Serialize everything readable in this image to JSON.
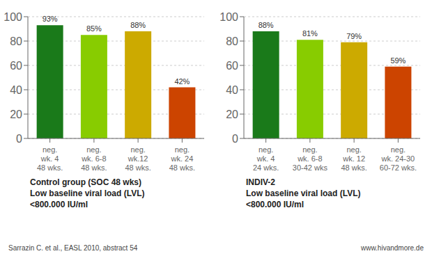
{
  "chart_data": [
    {
      "type": "bar",
      "title": "Control group (SOC 48 wks)\nLow baseline viral load (LVL)\n<800.000 IU/ml",
      "categories": [
        "neg.\nwk. 4\n48 wks.",
        "neg.\nwk. 6-8\n48 wks.",
        "neg.\nwk.12\n48 wks.",
        "neg.\nwk. 24\n48 wks."
      ],
      "values": [
        93,
        85,
        88,
        42
      ],
      "value_labels": [
        "93%",
        "85%",
        "88%",
        "42%"
      ],
      "data_labels": true,
      "colors": [
        "#1a7a1a",
        "#88cc00",
        "#ccaa00",
        "#cc4400"
      ],
      "ylim": [
        0,
        100
      ],
      "yticks": [
        0,
        20,
        40,
        60,
        80,
        100
      ],
      "grid": true,
      "annotations": [
        "Sarrazin C. et al., EASL 2010, abstract  54"
      ]
    },
    {
      "type": "bar",
      "title": "INDIV-2\nLow baseline viral load (LVL)\n<800.000 IU/ml",
      "categories": [
        "neg.\nwk. 4\n24 wks.",
        "neg.\nwk. 6-8\n30-42 wks",
        "neg.\nwk. 12\n48 wks.",
        "neg.\nwk. 24-30\n60-72 wks."
      ],
      "values": [
        88,
        81,
        79,
        59
      ],
      "value_labels": [
        "88%",
        "81%",
        "79%",
        "59%"
      ],
      "data_labels": true,
      "colors": [
        "#1a7a1a",
        "#88cc00",
        "#ccaa00",
        "#cc4400"
      ],
      "ylim": [
        0,
        100
      ],
      "yticks": [
        0,
        20,
        40,
        60,
        80,
        100
      ],
      "grid": true,
      "annotations": [
        "www.hivandmore.de"
      ]
    }
  ]
}
